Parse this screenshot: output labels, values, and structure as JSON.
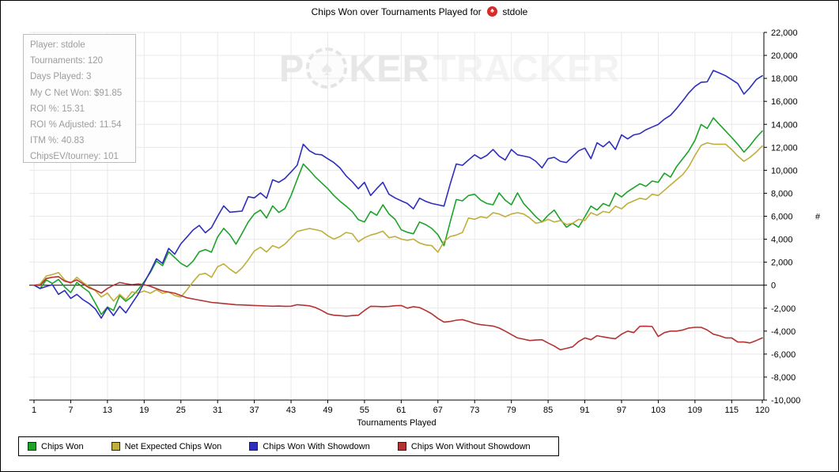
{
  "title": {
    "prefix": "Chips Won over Tournaments Played for",
    "player": "stdole"
  },
  "title_icon": {
    "symbol": "♠",
    "color": "#D42B2B"
  },
  "info_box": {
    "lines": [
      "Player: stdole",
      "Tournaments: 120",
      "Days Played: 3",
      "My C Net Won: $91.85",
      "ROI %: 15.31",
      "ROI % Adjusted: 11.54",
      "ITM %: 40.83",
      "ChipsEV/tourney: 101"
    ]
  },
  "watermark": {
    "p": "P",
    "ker": "KER",
    "tracker": "TRACKER",
    "chip_symbol": "♠"
  },
  "colors": {
    "grid": "#E9E9E9",
    "axis": "#000000",
    "zero_line": "#000000",
    "info_text": "#9C9C9C"
  },
  "chart_data": {
    "type": "line",
    "title": "Chips Won over Tournaments Played for stdole",
    "xlabel": "Tournaments Played",
    "ylabel": "#",
    "xlim": [
      1,
      120
    ],
    "ylim": [
      -10000,
      22000
    ],
    "y_step": 2000,
    "x_ticks": [
      1,
      7,
      13,
      19,
      25,
      31,
      37,
      43,
      49,
      55,
      61,
      67,
      73,
      79,
      85,
      91,
      97,
      103,
      109,
      115,
      120
    ],
    "grid": true,
    "legend_position": "bottom",
    "series": [
      {
        "name": "Chips Won",
        "color": "#1CA32A",
        "values": [
          0,
          -300,
          450,
          150,
          500,
          -150,
          -650,
          250,
          -200,
          -600,
          -1550,
          -2550,
          -1900,
          -2200,
          -900,
          -1400,
          -1000,
          -400,
          300,
          1100,
          2100,
          1700,
          2900,
          2400,
          1900,
          1600,
          2100,
          2900,
          3100,
          2870,
          4200,
          4950,
          4380,
          3570,
          4500,
          5500,
          6200,
          6540,
          5850,
          6900,
          6330,
          6670,
          7800,
          9200,
          10550,
          10000,
          9400,
          8900,
          8400,
          7800,
          7300,
          6880,
          6400,
          5700,
          5500,
          6420,
          6080,
          7000,
          6200,
          5730,
          4820,
          4600,
          4470,
          5500,
          5270,
          4930,
          4400,
          3440,
          5500,
          7450,
          7340,
          7800,
          7910,
          7400,
          7110,
          7000,
          8030,
          7400,
          7000,
          8030,
          7110,
          6540,
          5960,
          5500,
          6080,
          6540,
          5730,
          5040,
          5390,
          5040,
          5960,
          6880,
          6540,
          7110,
          6880,
          8030,
          7680,
          8140,
          8490,
          8830,
          8600,
          9060,
          8950,
          9750,
          9400,
          10320,
          11010,
          11700,
          12620,
          13990,
          13640,
          14560,
          13990,
          13420,
          12850,
          12270,
          11580,
          12160,
          12850,
          13420
        ]
      },
      {
        "name": "Net Expected Chips Won",
        "color": "#BFAE3A",
        "values": [
          0,
          100,
          800,
          920,
          1100,
          460,
          150,
          690,
          230,
          -120,
          -460,
          -1030,
          -690,
          -1380,
          -800,
          -1260,
          -580,
          -700,
          -500,
          -700,
          -400,
          -700,
          -600,
          -900,
          -1030,
          -400,
          300,
          920,
          1030,
          690,
          1600,
          1860,
          1400,
          1030,
          1500,
          2200,
          2980,
          3300,
          2890,
          3440,
          3230,
          3580,
          4130,
          4680,
          4800,
          4930,
          4830,
          4700,
          4300,
          4010,
          4240,
          4590,
          4480,
          3780,
          4130,
          4360,
          4500,
          4700,
          4130,
          4240,
          4010,
          3900,
          4010,
          3670,
          3500,
          3440,
          2870,
          3800,
          4240,
          4360,
          4590,
          5850,
          5730,
          5960,
          5850,
          6310,
          6190,
          5960,
          6190,
          6310,
          6190,
          5850,
          5390,
          5500,
          5730,
          5500,
          5620,
          5280,
          5390,
          5730,
          5620,
          6310,
          6080,
          6420,
          6310,
          6880,
          6650,
          7110,
          7340,
          7570,
          7450,
          7910,
          7800,
          8260,
          8720,
          9170,
          9630,
          10320,
          11300,
          12160,
          12390,
          12270,
          12270,
          12270,
          11810,
          11240,
          10780,
          11130,
          11580,
          12120
        ]
      },
      {
        "name": "Chips Won With Showdown",
        "color": "#2E2EBE",
        "values": [
          0,
          -280,
          -120,
          50,
          -800,
          -460,
          -1150,
          -800,
          -1260,
          -1600,
          -2060,
          -2870,
          -1950,
          -2640,
          -1840,
          -2410,
          -1600,
          -800,
          200,
          1200,
          2300,
          1900,
          3200,
          2700,
          3600,
          4200,
          4800,
          5200,
          4560,
          5000,
          6000,
          6900,
          6350,
          6400,
          6450,
          7700,
          7600,
          8030,
          7570,
          9170,
          8950,
          9290,
          9860,
          10440,
          12270,
          11700,
          11400,
          11350,
          11000,
          10670,
          10200,
          9520,
          9000,
          8390,
          8950,
          7800,
          8400,
          8950,
          7910,
          7600,
          7340,
          7110,
          6650,
          7570,
          7300,
          7110,
          7000,
          6880,
          8800,
          10550,
          10430,
          10900,
          11350,
          11010,
          11300,
          11810,
          11240,
          10890,
          11810,
          11350,
          11240,
          11130,
          10780,
          10210,
          11010,
          11130,
          10780,
          10670,
          11200,
          11700,
          11930,
          11010,
          12390,
          12040,
          12500,
          11810,
          13080,
          12730,
          13080,
          13190,
          13530,
          13760,
          13990,
          14450,
          14790,
          15370,
          16050,
          16740,
          17300,
          17660,
          17700,
          18690,
          18460,
          18230,
          17890,
          17550,
          16630,
          17200,
          17890,
          18230
        ]
      },
      {
        "name": "Chips Won Without Showdown",
        "color": "#B43232",
        "values": [
          0,
          -20,
          580,
          690,
          740,
          350,
          230,
          460,
          120,
          -230,
          -420,
          -690,
          -280,
          0,
          230,
          120,
          50,
          100,
          50,
          -100,
          -300,
          -500,
          -600,
          -700,
          -900,
          -1100,
          -1200,
          -1300,
          -1400,
          -1500,
          -1550,
          -1600,
          -1650,
          -1700,
          -1720,
          -1750,
          -1770,
          -1790,
          -1810,
          -1830,
          -1820,
          -1840,
          -1830,
          -1700,
          -1750,
          -1800,
          -1950,
          -2200,
          -2500,
          -2615,
          -2650,
          -2700,
          -2650,
          -2615,
          -2200,
          -1835,
          -1850,
          -1870,
          -1850,
          -1790,
          -1770,
          -2000,
          -1870,
          -1950,
          -2200,
          -2500,
          -2900,
          -3215,
          -3160,
          -3050,
          -3000,
          -3150,
          -3330,
          -3440,
          -3500,
          -3560,
          -3730,
          -4000,
          -4300,
          -4590,
          -4700,
          -4820,
          -4780,
          -4750,
          -5030,
          -5300,
          -5620,
          -5500,
          -5370,
          -4900,
          -4590,
          -4750,
          -4400,
          -4500,
          -4590,
          -4660,
          -4270,
          -4000,
          -4130,
          -3580,
          -3570,
          -3600,
          -4470,
          -4130,
          -4000,
          -4000,
          -3900,
          -3730,
          -3670,
          -3670,
          -3900,
          -4270,
          -4400,
          -4590,
          -4590,
          -4950,
          -4950,
          -5030,
          -4820,
          -4590
        ]
      }
    ]
  }
}
